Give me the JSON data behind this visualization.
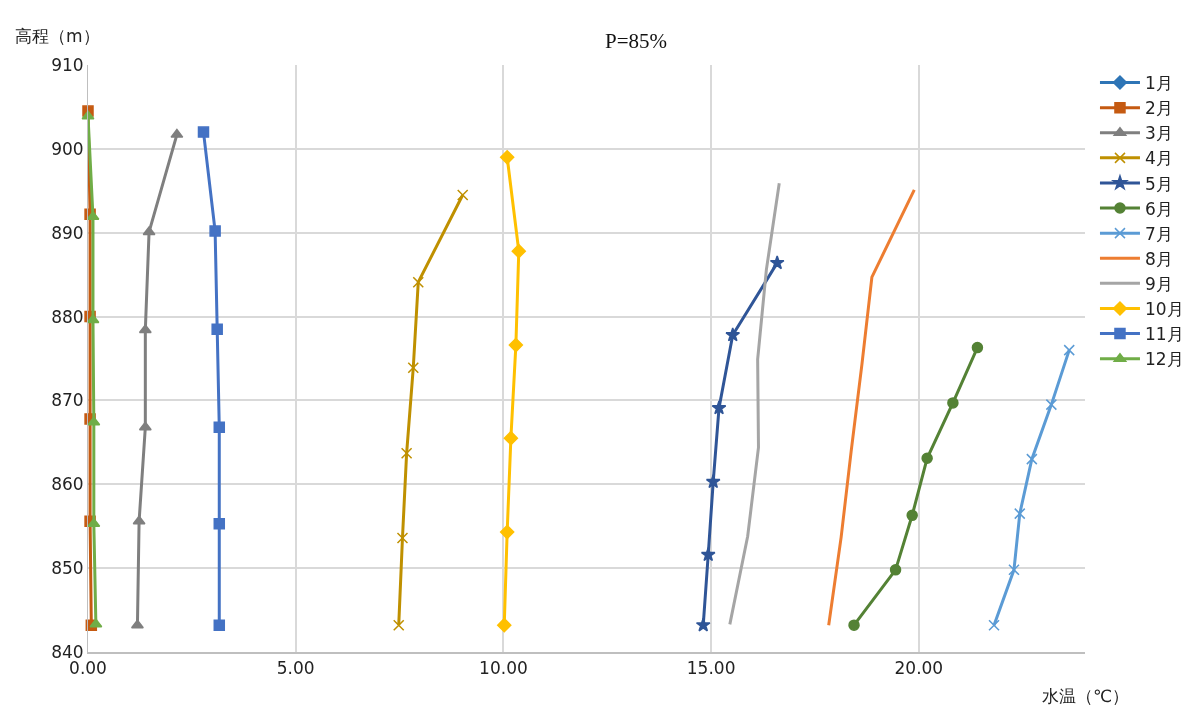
{
  "chart_data": {
    "type": "line",
    "title": "P=85%",
    "xlabel": "水温（℃）",
    "ylabel": "高程（m）",
    "xlim": [
      0,
      24
    ],
    "xticks": [
      {
        "value": 0,
        "label": "0.00"
      },
      {
        "value": 5,
        "label": "5.00"
      },
      {
        "value": 10,
        "label": "10.00"
      },
      {
        "value": 15,
        "label": "15.00"
      },
      {
        "value": 20,
        "label": "20.00"
      }
    ],
    "ylim": [
      840,
      910
    ],
    "yticks": [
      840,
      850,
      860,
      870,
      880,
      890,
      900,
      910
    ],
    "grid": true,
    "legend": "right",
    "line_style": "solid",
    "series": [
      {
        "name": "1月",
        "color": "#2e75b6",
        "marker": "diamond",
        "x": [
          null,
          null,
          null,
          null,
          null,
          null
        ],
        "values": [
          null,
          null,
          null,
          null,
          null,
          null
        ]
      },
      {
        "name": "2月",
        "color": "#c55a11",
        "marker": "square",
        "x": [
          0,
          0.05,
          0.05,
          0.05,
          0.05,
          0.08
        ],
        "values": [
          904.5,
          892.2,
          880.0,
          867.8,
          855.6,
          843.2
        ]
      },
      {
        "name": "3月",
        "color": "#7f7f7f",
        "marker": "triangle",
        "x": [
          2.14,
          1.47,
          1.38,
          1.38,
          1.23,
          1.19
        ],
        "values": [
          901.7,
          890.1,
          878.4,
          866.8,
          855.6,
          843.2
        ]
      },
      {
        "name": "4月",
        "color": "#bf9000",
        "marker": "cross",
        "x": [
          9.02,
          7.95,
          7.83,
          7.67,
          7.57,
          7.48
        ],
        "values": [
          894.5,
          884.1,
          873.9,
          863.7,
          853.6,
          843.2
        ]
      },
      {
        "name": "5月",
        "color": "#2f5597",
        "marker": "star",
        "x": [
          16.59,
          15.52,
          15.19,
          15.05,
          14.93,
          14.81
        ],
        "values": [
          886.4,
          877.8,
          869.1,
          860.3,
          851.6,
          843.2
        ]
      },
      {
        "name": "6月",
        "color": "#548235",
        "marker": "circle",
        "x": [
          21.41,
          20.82,
          20.2,
          19.84,
          19.44,
          18.44
        ],
        "values": [
          876.3,
          869.7,
          863.1,
          856.3,
          849.8,
          843.2
        ]
      },
      {
        "name": "7月",
        "color": "#5b9bd5",
        "marker": "cross",
        "x": [
          23.62,
          23.19,
          22.72,
          22.43,
          22.29,
          21.81
        ],
        "values": [
          876.0,
          869.5,
          863.0,
          856.5,
          849.8,
          843.2
        ]
      },
      {
        "name": "8月",
        "color": "#ed7d31",
        "marker": "none",
        "x": [
          19.89,
          18.87,
          18.63,
          18.37,
          18.13,
          17.83
        ],
        "values": [
          895.1,
          884.7,
          874.3,
          863.9,
          853.7,
          843.2
        ]
      },
      {
        "name": "9月",
        "color": "#a5a5a5",
        "marker": "none",
        "x": [
          16.64,
          16.33,
          16.12,
          16.14,
          15.88,
          15.45
        ],
        "values": [
          895.9,
          885.6,
          874.9,
          864.4,
          853.8,
          843.3
        ]
      },
      {
        "name": "10月",
        "color": "#ffc000",
        "marker": "diamond",
        "x": [
          10.09,
          10.37,
          10.3,
          10.18,
          10.09,
          10.02
        ],
        "values": [
          899.0,
          887.8,
          876.6,
          865.5,
          854.3,
          843.2
        ]
      },
      {
        "name": "11月",
        "color": "#4472c4",
        "marker": "square",
        "x": [
          2.78,
          3.06,
          3.11,
          3.16,
          3.16,
          3.16
        ],
        "values": [
          902.0,
          890.2,
          878.5,
          866.8,
          855.3,
          843.2
        ]
      },
      {
        "name": "12月",
        "color": "#70ad47",
        "marker": "triangle",
        "x": [
          0,
          0.12,
          0.12,
          0.14,
          0.14,
          0.19
        ],
        "values": [
          903.9,
          891.9,
          879.6,
          867.4,
          855.3,
          843.3
        ]
      }
    ]
  }
}
